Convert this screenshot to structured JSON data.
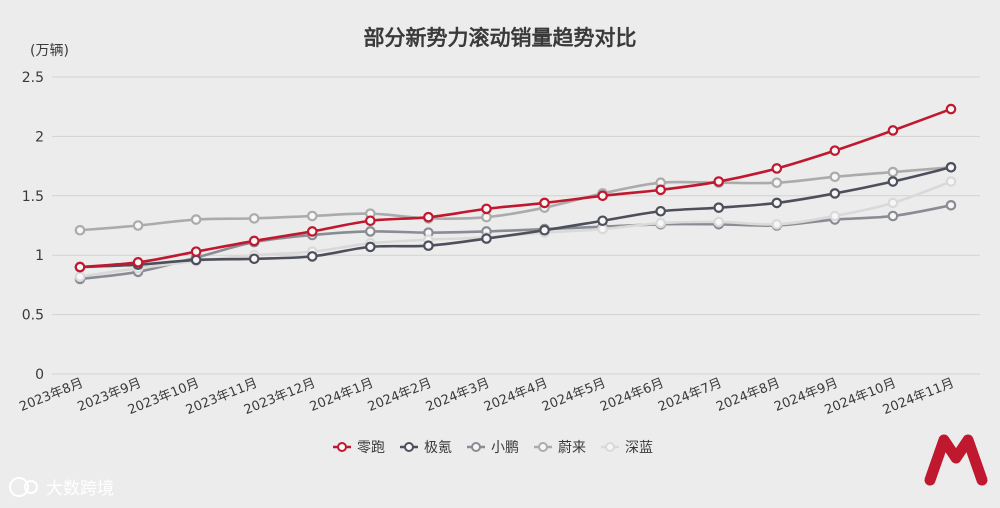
{
  "chart_data": {
    "type": "line",
    "title": "部分新势力滚动销量趋势对比",
    "ylabel": "(万辆)",
    "ylim": [
      0,
      2.5
    ],
    "yticks": [
      "0",
      "0.5",
      "1",
      "1.5",
      "2",
      "2.5"
    ],
    "grid": true,
    "legend_position": "bottom-center",
    "categories": [
      "2023年8月",
      "2023年9月",
      "2023年10月",
      "2023年11月",
      "2023年12月",
      "2024年1月",
      "2024年2月",
      "2024年3月",
      "2024年4月",
      "2024年5月",
      "2024年6月",
      "2024年7月",
      "2024年8月",
      "2024年9月",
      "2024年10月",
      "2024年11月"
    ],
    "series": [
      {
        "name": "蔚来",
        "color": "#ababab",
        "values": [
          1.21,
          1.25,
          1.3,
          1.31,
          1.33,
          1.35,
          1.31,
          1.32,
          1.4,
          1.52,
          1.61,
          1.61,
          1.61,
          1.66,
          1.7,
          1.74
        ]
      },
      {
        "name": "小鹏",
        "color": "#8a8c93",
        "values": [
          0.8,
          0.86,
          0.98,
          1.11,
          1.17,
          1.2,
          1.19,
          1.2,
          1.22,
          1.24,
          1.26,
          1.26,
          1.25,
          1.3,
          1.33,
          1.42
        ]
      },
      {
        "name": "深蓝",
        "color": "#d9d9d9",
        "values": [
          0.82,
          0.89,
          0.95,
          1.0,
          1.03,
          1.1,
          1.13,
          1.15,
          1.19,
          1.22,
          1.27,
          1.28,
          1.26,
          1.33,
          1.44,
          1.62
        ]
      },
      {
        "name": "极氪",
        "color": "#4d505c",
        "values": [
          0.9,
          0.92,
          0.96,
          0.97,
          0.99,
          1.07,
          1.08,
          1.14,
          1.21,
          1.29,
          1.37,
          1.4,
          1.44,
          1.52,
          1.62,
          1.74
        ]
      },
      {
        "name": "零跑",
        "color": "#c0182e",
        "values": [
          0.9,
          0.94,
          1.03,
          1.12,
          1.2,
          1.29,
          1.32,
          1.39,
          1.44,
          1.5,
          1.55,
          1.62,
          1.73,
          1.88,
          2.05,
          2.23
        ]
      }
    ],
    "legend_order": [
      "零跑",
      "极氪",
      "小鹏",
      "蔚来",
      "深蓝"
    ]
  },
  "watermark": {
    "text": "大数跨境"
  }
}
